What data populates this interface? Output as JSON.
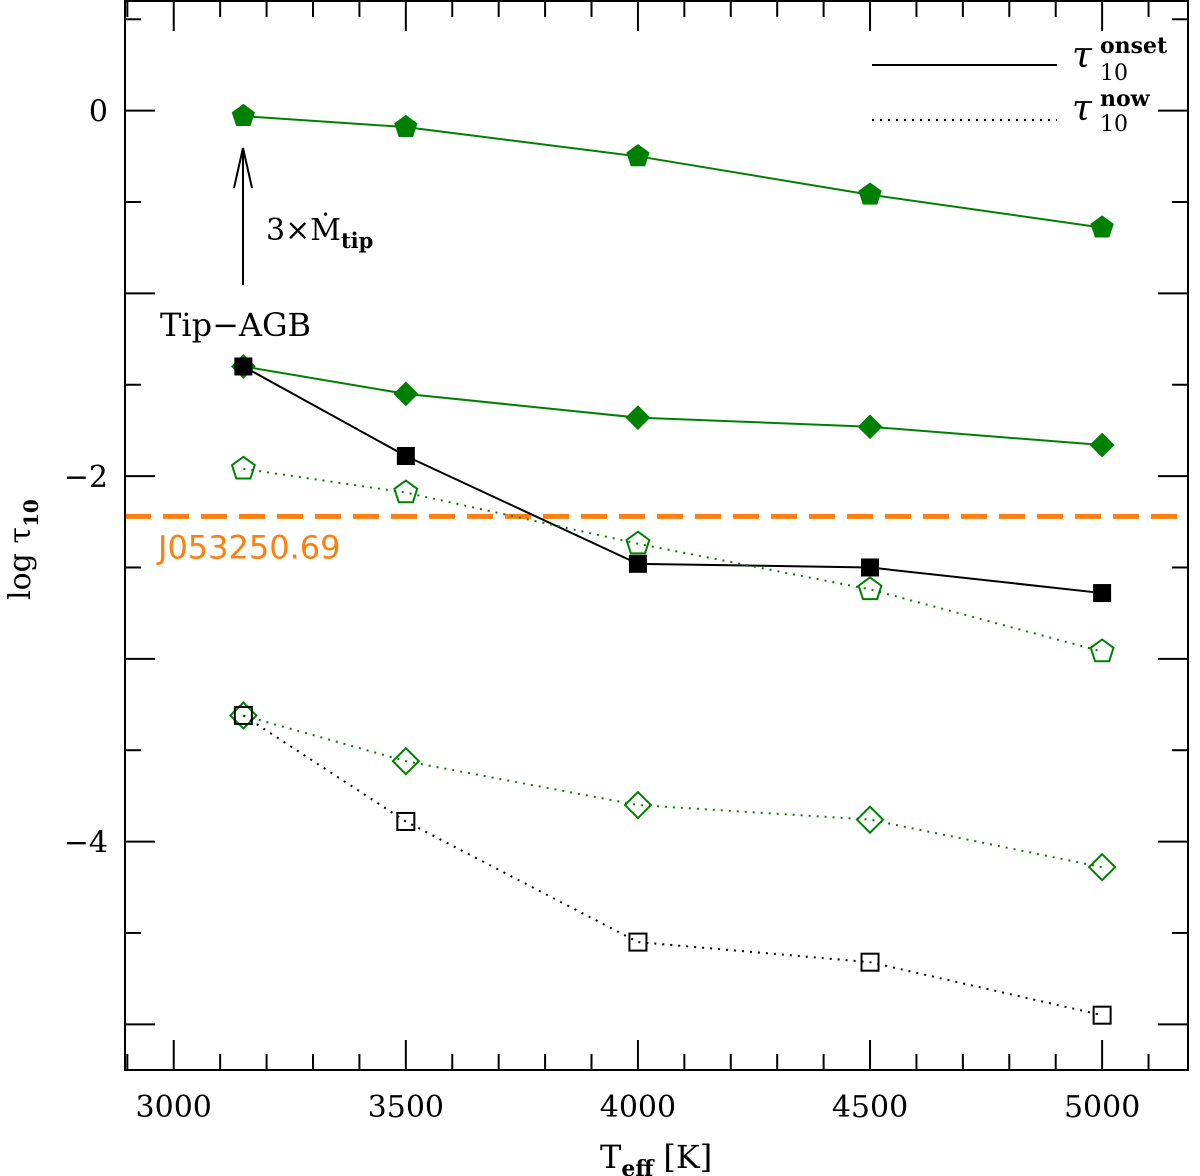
{
  "chart_data": {
    "type": "line",
    "xlabel": "T",
    "xlabel_sub": "eff",
    "xlabel_unit": "[K]",
    "ylabel": "log τ",
    "ylabel_sub": "10",
    "xlim": [
      2895,
      5185
    ],
    "ylim": [
      -5.25,
      0.6
    ],
    "xticks": [
      3000,
      3500,
      4000,
      4500,
      5000
    ],
    "yticks": [
      0,
      -2,
      -4
    ],
    "ytick_labels": [
      "0",
      "−2",
      "−4"
    ],
    "x": [
      3150,
      3500,
      4000,
      4500,
      5000
    ],
    "series": [
      {
        "name": "3x Mdot tip onset",
        "marker": "pentagon",
        "filled": true,
        "style": "solid",
        "color": "#008000",
        "values": [
          -0.03,
          -0.09,
          -0.25,
          -0.46,
          -0.64
        ]
      },
      {
        "name": "green diamonds onset",
        "marker": "diamond",
        "filled": true,
        "style": "solid",
        "color": "#008000",
        "values": [
          -1.4,
          -1.55,
          -1.68,
          -1.73,
          -1.83
        ]
      },
      {
        "name": "Tip-AGB onset",
        "marker": "square",
        "filled": true,
        "style": "solid",
        "color": "#000000",
        "values": [
          -1.4,
          -1.89,
          -2.48,
          -2.5,
          -2.64
        ]
      },
      {
        "name": "3x Mdot tip now",
        "marker": "pentagon",
        "filled": false,
        "style": "dotted",
        "color": "#008000",
        "values": [
          -1.96,
          -2.09,
          -2.37,
          -2.62,
          -2.96
        ]
      },
      {
        "name": "green diamonds now",
        "marker": "diamond",
        "filled": false,
        "style": "dotted",
        "color": "#008000",
        "values": [
          -3.31,
          -3.56,
          -3.8,
          -3.88,
          -4.14
        ]
      },
      {
        "name": "Tip-AGB now",
        "marker": "square",
        "filled": false,
        "style": "dotted",
        "color": "#000000",
        "values": [
          -3.31,
          -3.89,
          -4.55,
          -4.66,
          -4.95
        ]
      }
    ],
    "reference_line": {
      "label": "J053250.69",
      "y": -2.22,
      "color": "#ff7f0e",
      "style": "dashed"
    },
    "legend": {
      "placement": "top-right",
      "entries": [
        {
          "symbol": "τ",
          "sub": "10",
          "sup": "onset",
          "style": "solid"
        },
        {
          "symbol": "τ",
          "sub": "10",
          "sup": "now",
          "style": "dotted"
        }
      ]
    },
    "annotations": {
      "arrow_label": "3×Ṁ",
      "arrow_label_sub": "tip",
      "tip_label": "Tip−AGB"
    }
  }
}
